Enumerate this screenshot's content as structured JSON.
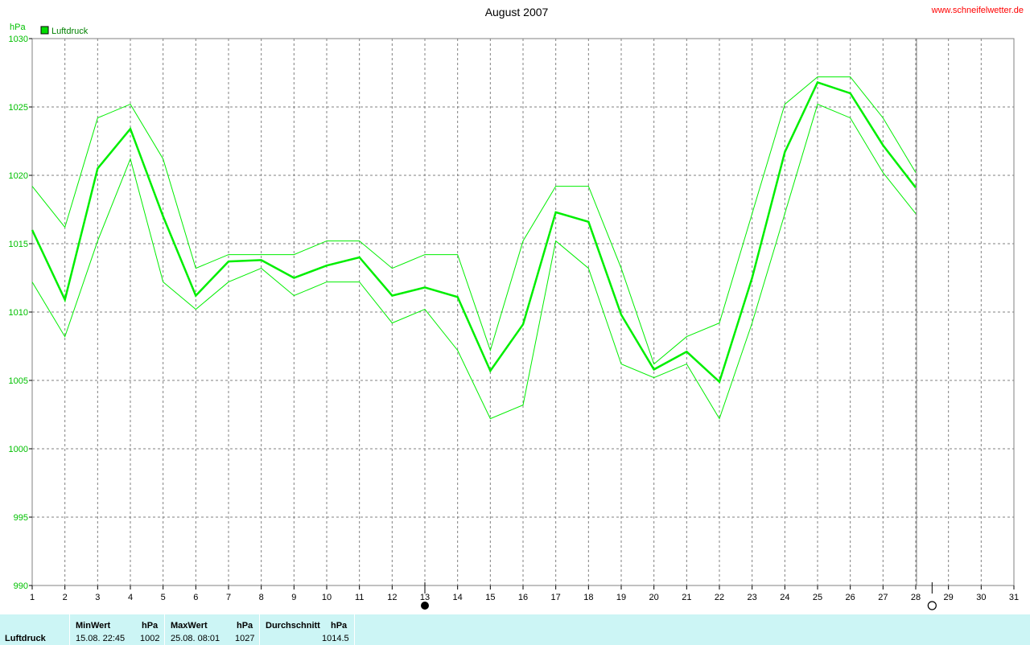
{
  "title": "August 2007",
  "site": "www.schneifelwetter.de",
  "unit": "hPa",
  "legend": {
    "label": "Luftdruck",
    "color": "#00cc00"
  },
  "chart_data": {
    "type": "line",
    "title": "August 2007",
    "ylabel": "hPa",
    "xlabel": "",
    "ylim": [
      990,
      1030
    ],
    "xlim": [
      1,
      31
    ],
    "yticks": [
      990,
      995,
      1000,
      1005,
      1010,
      1015,
      1020,
      1025,
      1030
    ],
    "xticks": [
      1,
      2,
      3,
      4,
      5,
      6,
      7,
      8,
      9,
      10,
      11,
      12,
      13,
      14,
      15,
      16,
      17,
      18,
      19,
      20,
      21,
      22,
      23,
      24,
      25,
      26,
      27,
      28,
      29,
      30,
      31
    ],
    "grid": true,
    "legend_position": "top-left",
    "moon_phases": [
      {
        "day": 13,
        "phase": "new moon"
      },
      {
        "day": 28.5,
        "phase": "full moon"
      }
    ],
    "series": [
      {
        "name": "Luftdruck",
        "x": [
          1,
          2,
          3,
          4,
          5,
          6,
          7,
          8,
          9,
          10,
          11,
          12,
          13,
          14,
          15,
          16,
          17,
          18,
          19,
          20,
          21,
          22,
          23,
          24,
          25,
          26,
          27,
          28
        ],
        "values": [
          1016.0,
          1010.9,
          1020.5,
          1023.4,
          1017.0,
          1011.2,
          1013.7,
          1013.8,
          1012.5,
          1013.4,
          1014.0,
          1011.2,
          1011.8,
          1011.1,
          1005.7,
          1009.1,
          1017.3,
          1016.6,
          1009.8,
          1005.8,
          1007.1,
          1004.9,
          1012.5,
          1021.7,
          1026.8,
          1026.0,
          1022.2,
          1019.1
        ]
      },
      {
        "role": "max",
        "x": [
          1,
          2,
          3,
          4,
          5,
          6,
          7,
          8,
          9,
          10,
          11,
          12,
          13,
          14,
          15,
          16,
          17,
          18,
          19,
          20,
          21,
          22,
          23,
          24,
          25,
          26,
          27,
          28
        ],
        "values": [
          1019.2,
          1016.2,
          1024.2,
          1025.2,
          1021.2,
          1013.2,
          1014.2,
          1014.2,
          1014.2,
          1015.2,
          1015.2,
          1013.2,
          1014.2,
          1014.2,
          1007.2,
          1015.2,
          1019.2,
          1019.2,
          1013.2,
          1006.2,
          1008.2,
          1009.2,
          1017.2,
          1025.2,
          1027.2,
          1027.2,
          1024.2,
          1020.2
        ]
      },
      {
        "role": "min",
        "x": [
          1,
          2,
          3,
          4,
          5,
          6,
          7,
          8,
          9,
          10,
          11,
          12,
          13,
          14,
          15,
          16,
          17,
          18,
          19,
          20,
          21,
          22,
          23,
          24,
          25,
          26,
          27,
          28
        ],
        "values": [
          1012.2,
          1008.2,
          1015.2,
          1021.2,
          1012.2,
          1010.2,
          1012.2,
          1013.2,
          1011.2,
          1012.2,
          1012.2,
          1009.2,
          1010.2,
          1007.2,
          1002.2,
          1003.2,
          1015.2,
          1013.2,
          1006.2,
          1005.2,
          1006.2,
          1002.2,
          1009.2,
          1017.2,
          1025.2,
          1024.2,
          1020.2,
          1017.2
        ]
      }
    ]
  },
  "stats": {
    "row_label": "Luftdruck",
    "min_header": "MinWert",
    "min_unit": "hPa",
    "min_date": "15.08.  22:45",
    "min_value": "1002",
    "max_header": "MaxWert",
    "max_unit": "hPa",
    "max_date": "25.08.  08:01",
    "max_value": "1027",
    "avg_header": "Durchschnitt",
    "avg_unit": "hPa",
    "avg_value": "1014.5"
  }
}
